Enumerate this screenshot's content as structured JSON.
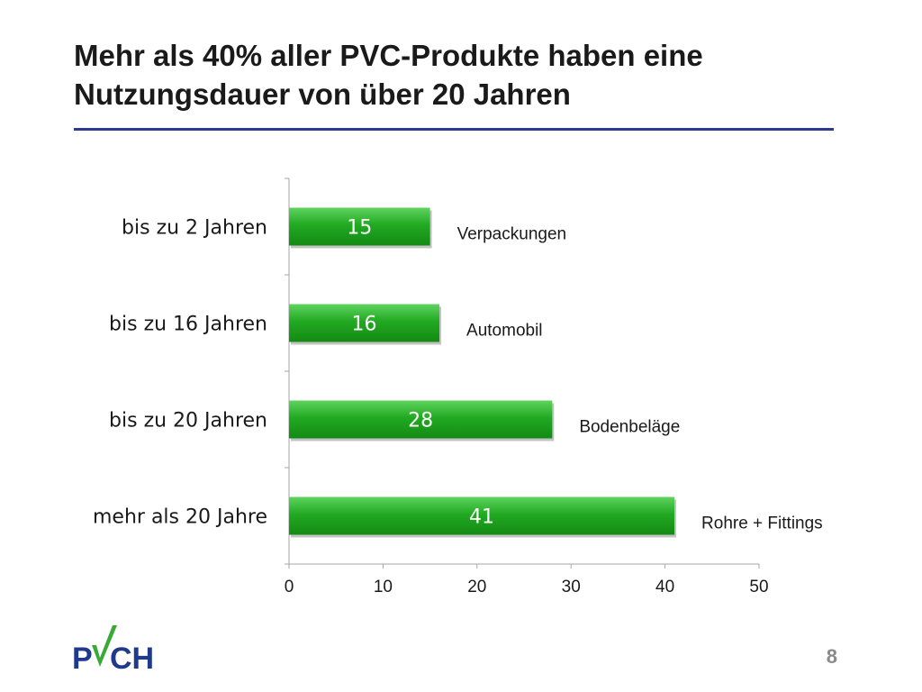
{
  "slide": {
    "title_line1": "Mehr als 40% aller PVC-Produkte haben eine",
    "title_line2": "Nutzungsdauer von über 20 Jahren",
    "page_number": "8",
    "logo_text": "PVCH",
    "colors": {
      "accent_rule": "#2b3990",
      "bar_fill": "#1fa61f",
      "logo_blue": "#1f3a8a",
      "logo_green": "#3aa935"
    }
  },
  "chart_data": {
    "type": "bar",
    "orientation": "horizontal",
    "categories": [
      "bis zu 2 Jahren",
      "bis zu 16 Jahren",
      "bis zu 20 Jahren",
      "mehr als 20 Jahre"
    ],
    "values": [
      15,
      16,
      28,
      41
    ],
    "value_labels": [
      "15",
      "16",
      "28",
      "41"
    ],
    "annotations": [
      "Verpackungen",
      "Automobil",
      "Bodenbeläge",
      "Rohre + Fittings"
    ],
    "xlim": [
      0,
      50
    ],
    "xticks": [
      0,
      10,
      20,
      30,
      40,
      50
    ],
    "grid": false,
    "bar_color": "#1fa61f"
  }
}
